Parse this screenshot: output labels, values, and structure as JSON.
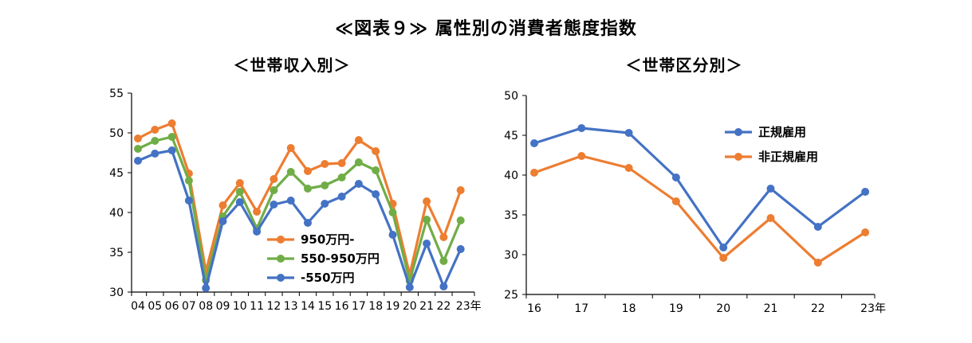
{
  "title": "≪図表９≫ 属性別の消費者態度指数",
  "chart_data": [
    {
      "type": "line",
      "title": "＜世帯収入別＞",
      "x": [
        "04",
        "05",
        "06",
        "07",
        "08",
        "09",
        "10",
        "11",
        "12",
        "13",
        "14",
        "15",
        "16",
        "17",
        "18",
        "19",
        "20",
        "21",
        "22",
        "23"
      ],
      "x_suffix": "年",
      "ylim": [
        30,
        55
      ],
      "yticks": [
        30,
        35,
        40,
        45,
        50,
        55
      ],
      "grid": false,
      "legend_position": "bottom-left",
      "series": [
        {
          "name": "950万円-",
          "color": "#ED7D31",
          "values": [
            49.3,
            50.4,
            51.2,
            44.9,
            32.6,
            40.9,
            43.7,
            40.1,
            44.2,
            48.1,
            45.2,
            46.1,
            46.2,
            49.1,
            47.7,
            41.1,
            32.2,
            41.4,
            36.9,
            42.8
          ]
        },
        {
          "name": "550-950万円",
          "color": "#70AD47",
          "values": [
            48.0,
            49.0,
            49.5,
            44.0,
            31.5,
            39.5,
            42.6,
            38.0,
            42.8,
            45.1,
            43.0,
            43.4,
            44.4,
            46.3,
            45.3,
            40.0,
            31.4,
            39.1,
            33.9,
            39.0
          ]
        },
        {
          "name": "-550万円",
          "color": "#4472C4",
          "values": [
            46.5,
            47.4,
            47.8,
            41.5,
            30.5,
            38.9,
            41.3,
            37.6,
            41.0,
            41.5,
            38.7,
            41.1,
            42.0,
            43.6,
            42.3,
            37.2,
            30.6,
            36.1,
            30.7,
            35.4
          ]
        }
      ]
    },
    {
      "type": "line",
      "title": "＜世帯区分別＞",
      "x": [
        "16",
        "17",
        "18",
        "19",
        "20",
        "21",
        "22",
        "23"
      ],
      "x_suffix": "年",
      "ylim": [
        25,
        50
      ],
      "yticks": [
        25,
        30,
        35,
        40,
        45,
        50
      ],
      "grid": false,
      "legend_position": "top-right",
      "series": [
        {
          "name": "正規雇用",
          "color": "#4472C4",
          "values": [
            44.0,
            45.9,
            45.3,
            39.7,
            30.9,
            38.3,
            33.5,
            37.9
          ]
        },
        {
          "name": "非正規雇用",
          "color": "#ED7D31",
          "values": [
            40.3,
            42.4,
            40.9,
            36.7,
            29.6,
            34.6,
            29.0,
            32.8
          ]
        }
      ]
    }
  ]
}
